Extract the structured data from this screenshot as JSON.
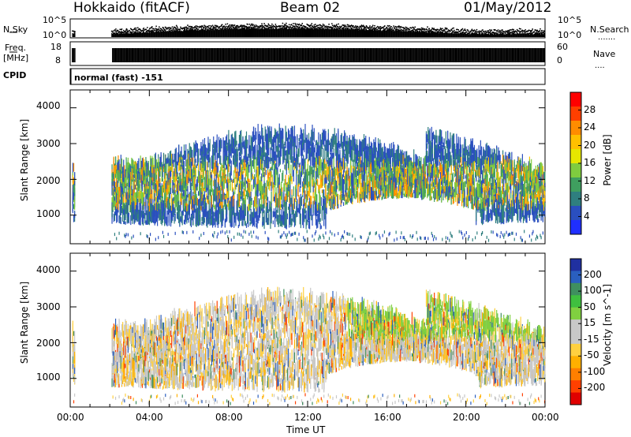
{
  "header": {
    "station": "Hokkaido (fitACF)",
    "beam": "Beam 02",
    "date": "01/May/2012"
  },
  "nsky": {
    "label": "N.Sky",
    "right_label": "N.Search",
    "left_ticks": [
      "10^5",
      "10^0"
    ],
    "right_ticks": [
      "10^5",
      "10^0"
    ]
  },
  "freq": {
    "label_line1": "Freq.",
    "label_line2": "[MHz]",
    "right_label": "Nave",
    "left_ticks": [
      "18",
      "8"
    ],
    "right_ticks": [
      "60",
      "0"
    ]
  },
  "cpid": {
    "label": "CPID",
    "value": "normal (fast) -151"
  },
  "power_panel": {
    "ylabel": "Slant Range [km]",
    "yticks": [
      "4000",
      "3000",
      "2000",
      "1000"
    ],
    "colorbar_label": "Power [dB]",
    "colorbar_ticks": [
      "28",
      "24",
      "20",
      "16",
      "12",
      "8",
      "4"
    ],
    "colors": [
      "#ff0000",
      "#ff3f00",
      "#ff8c00",
      "#ffc000",
      "#e6e600",
      "#7fcc3f",
      "#3f9f5f",
      "#2f7f7f",
      "#2a4fbf",
      "#1f2fff"
    ]
  },
  "velocity_panel": {
    "ylabel": "Slant Range [km]",
    "yticks": [
      "4000",
      "3000",
      "2000",
      "1000"
    ],
    "colorbar_label": "Velocity [m s^-1]",
    "colorbar_ticks": [
      "200",
      "100",
      "50",
      "15",
      "-15",
      "-50",
      "-100",
      "-200"
    ],
    "colors": [
      "#2030a0",
      "#2a5fbf",
      "#3f8f5f",
      "#3fbf3f",
      "#80d040",
      "#c8c8c8",
      "#c8c8c8",
      "#ffd040",
      "#ffb000",
      "#ff7f00",
      "#ff4000",
      "#e00000"
    ]
  },
  "xaxis": {
    "label": "Time UT",
    "ticks": [
      "00:00",
      "04:00",
      "08:00",
      "12:00",
      "16:00",
      "20:00",
      "00:00"
    ]
  },
  "chart_data": {
    "type": "heatmap",
    "title": "Beam 02",
    "xlabel": "Time UT",
    "ylabel": "Slant Range [km]",
    "x_range_hours": [
      0,
      24
    ],
    "y_range_km": [
      200,
      4500
    ],
    "data_gap_hours": [
      0.3,
      2.1
    ],
    "series": [
      {
        "name": "Power [dB]",
        "range": [
          0,
          30
        ]
      },
      {
        "name": "Velocity [m s^-1]",
        "range": [
          -250,
          250
        ]
      }
    ]
  }
}
